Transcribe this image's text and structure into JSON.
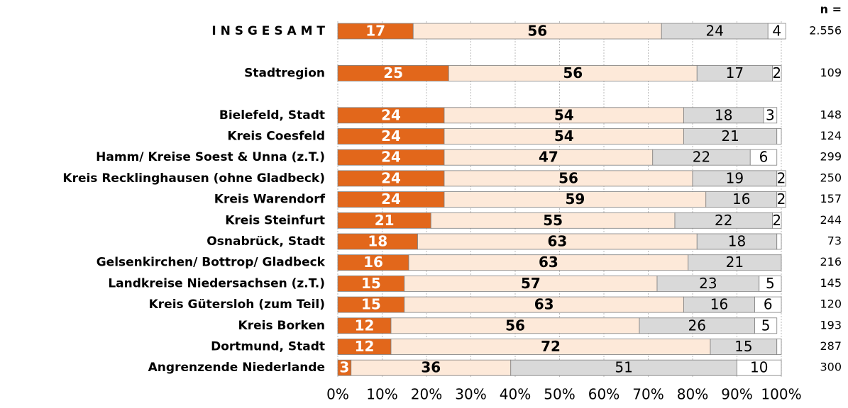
{
  "chart_data": {
    "type": "stacked_barh",
    "categories": [
      "I N S G E S A M T",
      "Stadtregion",
      "Bielefeld, Stadt",
      "Kreis Coesfeld",
      "Hamm/ Kreise Soest & Unna (z.T.)",
      "Kreis Recklinghausen (ohne Gladbeck)",
      "Kreis Warendorf",
      "Kreis Steinfurt",
      "Osnabrück, Stadt",
      "Gelsenkirchen/ Bottrop/ Gladbeck",
      "Landkreise Niedersachsen (z.T.)",
      "Kreis Gütersloh (zum Teil)",
      "Kreis Borken",
      "Dortmund, Stadt",
      "Angrenzende Niederlande"
    ],
    "series": [
      {
        "color": "#e2671b",
        "values": [
          17,
          25,
          24,
          24,
          24,
          24,
          24,
          21,
          18,
          16,
          15,
          15,
          12,
          12,
          3
        ]
      },
      {
        "color": "#fde9d9",
        "values": [
          56,
          56,
          54,
          54,
          47,
          56,
          59,
          55,
          63,
          63,
          57,
          63,
          56,
          72,
          36
        ]
      },
      {
        "color": "#d9d9d9",
        "values": [
          24,
          17,
          18,
          21,
          22,
          19,
          16,
          22,
          18,
          21,
          23,
          16,
          26,
          15,
          51
        ]
      },
      {
        "color": "#ffffff",
        "values": [
          4,
          2,
          3,
          1,
          6,
          2,
          2,
          2,
          1,
          0,
          5,
          6,
          5,
          1,
          10
        ],
        "value_labels": [
          "4",
          "2",
          "3",
          null,
          "6",
          "2",
          "2",
          "2",
          null,
          null,
          "5",
          "6",
          "5",
          null,
          "10"
        ]
      }
    ],
    "n_title": "n =",
    "n": [
      {
        "value": 2556,
        "label": "2.556"
      },
      109,
      148,
      124,
      299,
      250,
      157,
      244,
      73,
      216,
      145,
      120,
      193,
      287,
      300
    ],
    "xlim": [
      0,
      100
    ],
    "xticks": [
      {
        "value": 0,
        "label": "0%"
      },
      {
        "value": 10,
        "label": "10%"
      },
      {
        "value": 20,
        "label": "20%"
      },
      {
        "value": 30,
        "label": "30%"
      },
      {
        "value": 40,
        "label": "40%"
      },
      {
        "value": 50,
        "label": "50%"
      },
      {
        "value": 60,
        "label": "60%"
      },
      {
        "value": 70,
        "label": "70%"
      },
      {
        "value": 80,
        "label": "80%"
      },
      {
        "value": 90,
        "label": "90%"
      },
      {
        "value": 100,
        "label": "100%"
      }
    ],
    "grid": true
  }
}
